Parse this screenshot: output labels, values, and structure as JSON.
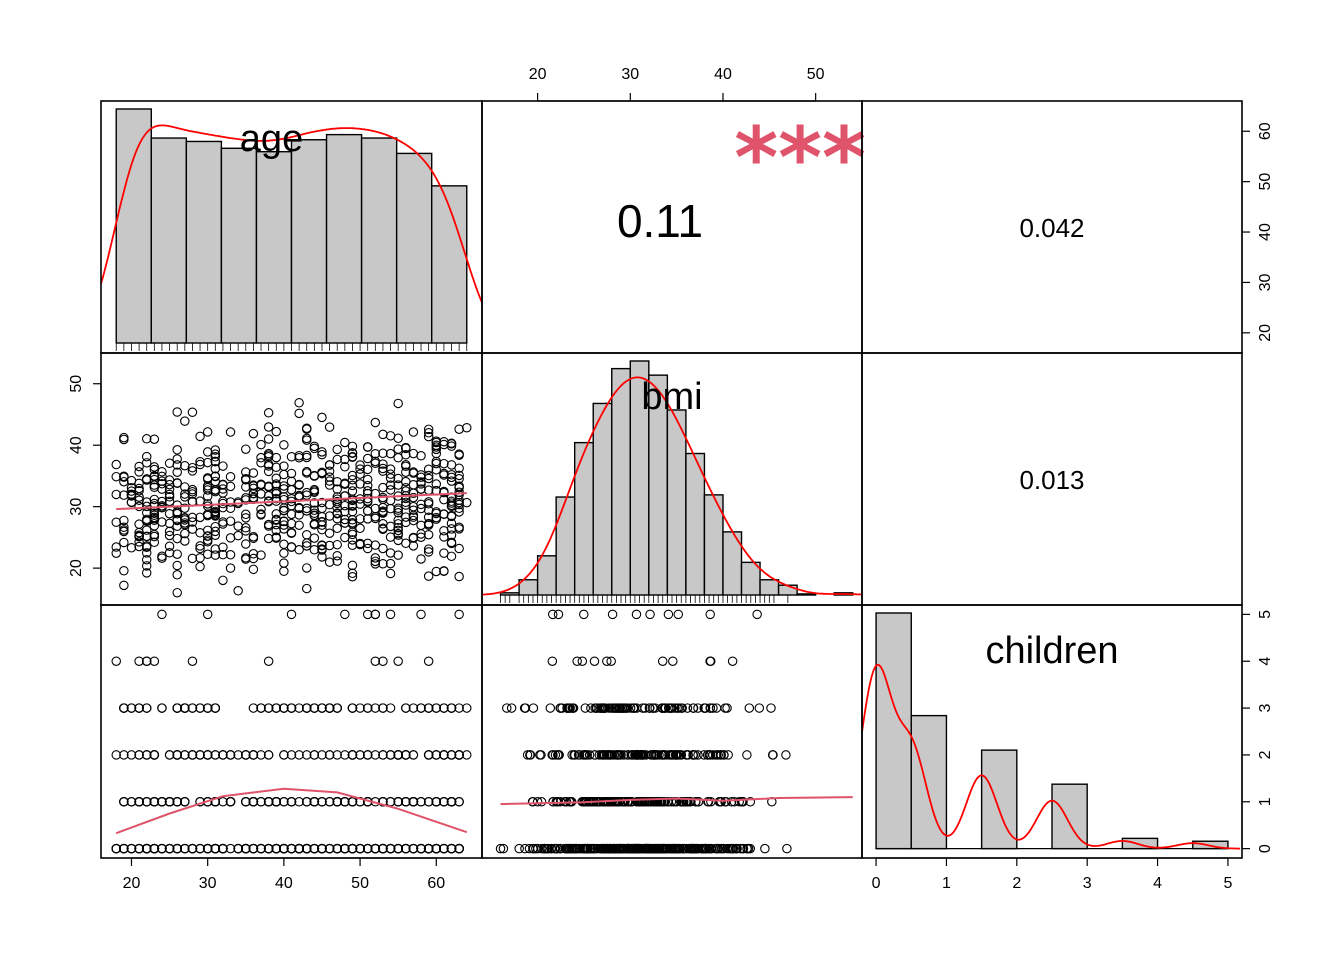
{
  "chart_data": {
    "type": "scatter",
    "matrix_type": "correlation-scatterplot-matrix",
    "variables": [
      "age",
      "bmi",
      "children"
    ],
    "colors": {
      "bars": "#c8c8c8",
      "density": "#ff0000",
      "fit": "#df536b",
      "stars": "#df536b",
      "points": "#000000"
    },
    "correlations": [
      {
        "pair": [
          "age",
          "bmi"
        ],
        "value": "0.11",
        "stars": "***"
      },
      {
        "pair": [
          "age",
          "children"
        ],
        "value": "0.042",
        "stars": ""
      },
      {
        "pair": [
          "bmi",
          "children"
        ],
        "value": "0.013",
        "stars": ""
      }
    ],
    "axes": {
      "age": {
        "range": [
          16,
          66
        ],
        "ticks": [
          "20",
          "30",
          "40",
          "50",
          "60"
        ],
        "tick_values": [
          20,
          30,
          40,
          50,
          60
        ]
      },
      "bmi": {
        "range": [
          14,
          55
        ],
        "ticks": [
          "20",
          "30",
          "40",
          "50"
        ],
        "tick_values": [
          20,
          30,
          40,
          50
        ]
      },
      "children": {
        "range": [
          -0.2,
          5.2
        ],
        "ticks": [
          "0",
          "1",
          "2",
          "3",
          "4",
          "5"
        ],
        "tick_values": [
          0,
          1,
          2,
          3,
          4,
          5
        ]
      }
    },
    "histograms": {
      "age": {
        "bin_edges": [
          18,
          22.6,
          27.2,
          31.8,
          36.4,
          41,
          45.6,
          50.2,
          54.8,
          59.4,
          64
        ],
        "counts": [
          137,
          120,
          118,
          114,
          112,
          119,
          122,
          120,
          111,
          92
        ]
      },
      "bmi": {
        "bin_edges": [
          16,
          18,
          20,
          22,
          24,
          26,
          28,
          30,
          32,
          34,
          36,
          38,
          40,
          42,
          44,
          46,
          48,
          50,
          52,
          54
        ],
        "counts": [
          2,
          14,
          36,
          90,
          140,
          176,
          208,
          215,
          202,
          170,
          130,
          92,
          58,
          30,
          14,
          9,
          1,
          0,
          2
        ]
      },
      "children": {
        "bin_edges": [
          0,
          0.5,
          1,
          1.5,
          2,
          2.5,
          3,
          3.5,
          4,
          4.5,
          5
        ],
        "counts": [
          574,
          324,
          0,
          240,
          0,
          157,
          0,
          25,
          0,
          18
        ]
      }
    },
    "fits": {
      "bmi_vs_age": {
        "x": [
          18,
          64
        ],
        "y": [
          29.6,
          32.2
        ]
      },
      "children_vs_age": {
        "x": [
          18,
          25,
          32,
          40,
          47,
          55,
          64
        ],
        "y": [
          0.33,
          0.75,
          1.12,
          1.28,
          1.2,
          0.85,
          0.35
        ]
      },
      "children_vs_bmi": {
        "x": [
          16,
          25,
          30,
          35,
          40,
          46,
          54
        ],
        "y": [
          0.95,
          0.99,
          1.04,
          1.07,
          1.02,
          1.08,
          1.1
        ]
      }
    }
  }
}
